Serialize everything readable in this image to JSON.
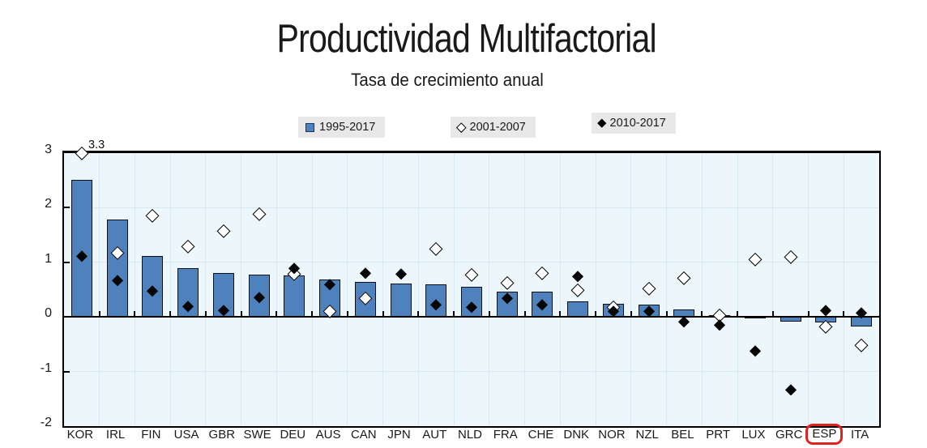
{
  "title": "Productividad Multifactorial",
  "subtitle": "Tasa de crecimiento anual",
  "legend": [
    {
      "label": "1995-2017",
      "marker": "blue-square"
    },
    {
      "label": "2001-2007",
      "marker": "open-diamond"
    },
    {
      "label": "2010-2017",
      "marker": "filled-diamond"
    }
  ],
  "highlight": {
    "category": "ESP",
    "index": 21,
    "color": "#E0231F"
  },
  "annotation": {
    "text": "3.3",
    "category": "KOR",
    "series": "2001-2007",
    "note": "marker clipped at axis max 3.0"
  },
  "colors": {
    "bar_fill": "#4F81BD",
    "bar_border": "#06101c",
    "plot_background": "#EDF7FB",
    "gridline": "#D7EAF3",
    "axis": "#000000",
    "legend_background": "#E8E8E8",
    "highlight_red": "#E0231F"
  },
  "chart_data": {
    "type": "bar",
    "title": "Productividad Multifactorial",
    "subtitle": "Tasa de crecimiento anual",
    "xlabel": "",
    "ylabel": "",
    "ylim": [
      -2,
      3
    ],
    "yticks": [
      3,
      2,
      1,
      0,
      -1,
      -2
    ],
    "grid": true,
    "legend_position": "top",
    "clip_max": 3,
    "categories": [
      "KOR",
      "IRL",
      "FIN",
      "USA",
      "GBR",
      "SWE",
      "DEU",
      "AUS",
      "CAN",
      "JPN",
      "AUT",
      "NLD",
      "FRA",
      "CHE",
      "DNK",
      "NOR",
      "NZL",
      "BEL",
      "PRT",
      "LUX",
      "GRC",
      "ESP",
      "ITA"
    ],
    "series": [
      {
        "name": "1995-2017",
        "render": "bar",
        "values": [
          2.51,
          1.78,
          1.12,
          0.9,
          0.8,
          0.78,
          0.76,
          0.68,
          0.64,
          0.61,
          0.59,
          0.55,
          0.47,
          0.47,
          0.29,
          0.24,
          0.23,
          0.13,
          0.03,
          -0.03,
          -0.08,
          -0.1,
          -0.18
        ]
      },
      {
        "name": "2001-2007",
        "render": "scatter",
        "marker": "open-diamond",
        "values": [
          3.3,
          1.17,
          1.86,
          1.3,
          1.57,
          1.88,
          0.79,
          0.11,
          0.35,
          null,
          1.25,
          0.77,
          0.63,
          0.8,
          0.49,
          0.18,
          0.52,
          0.72,
          0.03,
          1.05,
          1.1,
          -0.17,
          -0.52
        ]
      },
      {
        "name": "2010-2017",
        "render": "scatter",
        "marker": "filled-diamond",
        "values": [
          1.11,
          0.67,
          0.48,
          0.2,
          0.12,
          0.36,
          0.9,
          0.6,
          0.81,
          0.79,
          0.22,
          0.18,
          0.35,
          0.22,
          0.75,
          0.11,
          0.11,
          -0.08,
          -0.14,
          -0.62,
          -1.33,
          0.12,
          0.08
        ]
      }
    ]
  }
}
